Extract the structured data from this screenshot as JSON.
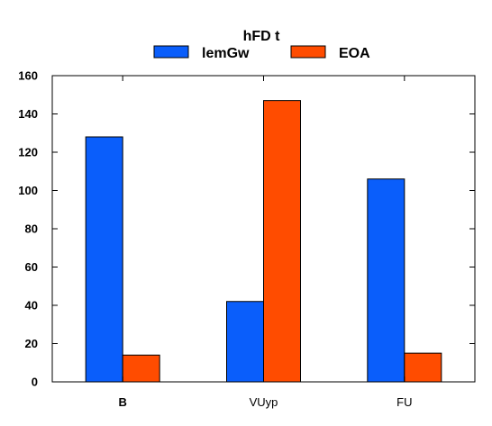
{
  "chart_data": {
    "type": "bar",
    "categories": [
      "B",
      "VUyp",
      "FU"
    ],
    "category_bold": [
      true,
      false,
      false
    ],
    "series": [
      {
        "name": "lemGw",
        "color": "#0a5efb",
        "values": [
          128,
          42,
          106
        ]
      },
      {
        "name": "EOA",
        "color": "#ff4c00",
        "values": [
          14,
          147,
          15
        ]
      }
    ],
    "legend_title": "hFD t",
    "legend_position": "top-center",
    "ylim": [
      0,
      160
    ],
    "yticks": [
      0,
      20,
      40,
      60,
      80,
      100,
      120,
      140,
      160
    ],
    "grid": false,
    "xlabel": "",
    "ylabel": "",
    "title": ""
  }
}
